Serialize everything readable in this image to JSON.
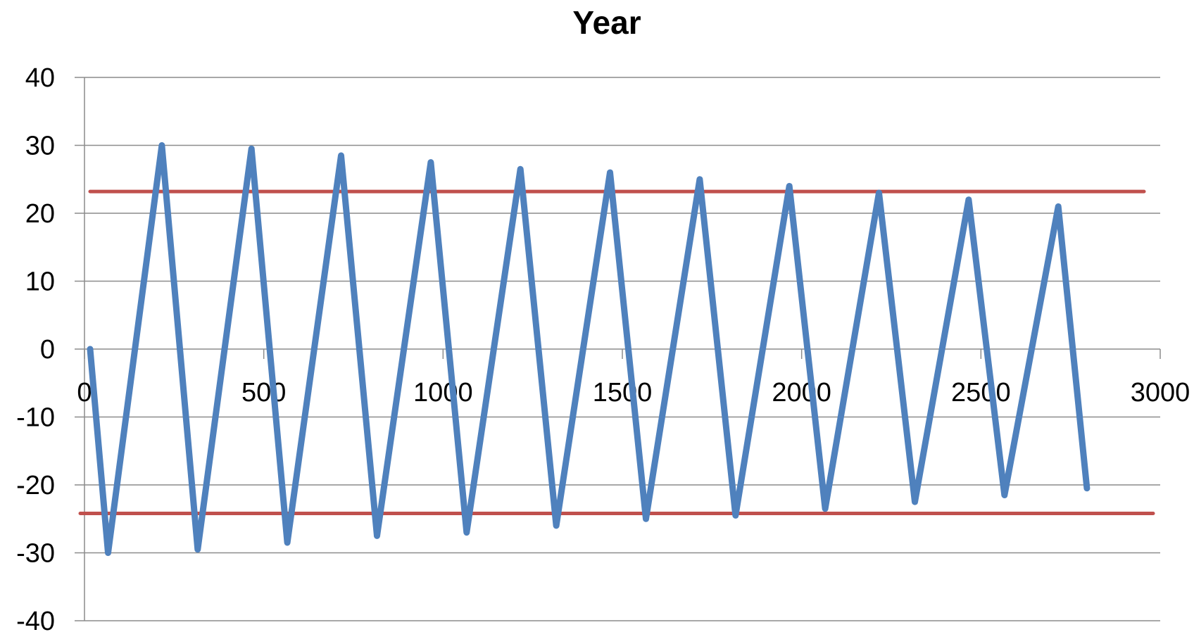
{
  "chart_data": {
    "type": "line",
    "title": "Year",
    "xlabel": "",
    "ylabel": "",
    "xlim": [
      0,
      3000
    ],
    "ylim": [
      -40,
      40
    ],
    "x_ticks": [
      "0",
      "500",
      "1000",
      "1500",
      "2000",
      "2500",
      "3000"
    ],
    "y_ticks": [
      "40",
      "30",
      "20",
      "10",
      "0",
      "-10",
      "-20",
      "-30",
      "-40"
    ],
    "grid": "horizontal",
    "legend": "none",
    "series": [
      {
        "color": "#4f81bd",
        "x": [
          0,
          50,
          200,
          300,
          450,
          550,
          700,
          800,
          950,
          1050,
          1200,
          1300,
          1450,
          1550,
          1700,
          1800,
          1950,
          2050,
          2200,
          2300,
          2450,
          2550,
          2700,
          2780
        ],
        "y": [
          0,
          -30,
          30,
          -29.5,
          29.5,
          -28.5,
          28.5,
          -27.5,
          27.5,
          -27,
          26.5,
          -26,
          26,
          -25,
          25,
          -24.5,
          24,
          -23.5,
          23,
          -22.5,
          22,
          -21.5,
          21,
          -20.5
        ]
      },
      {
        "color": "#c0504d",
        "x": [
          0,
          3000
        ],
        "y": [
          23.2,
          23.2
        ]
      },
      {
        "color": "#c0504d",
        "x": [
          0,
          3000
        ],
        "y": [
          -24.2,
          -24.2
        ]
      }
    ]
  }
}
